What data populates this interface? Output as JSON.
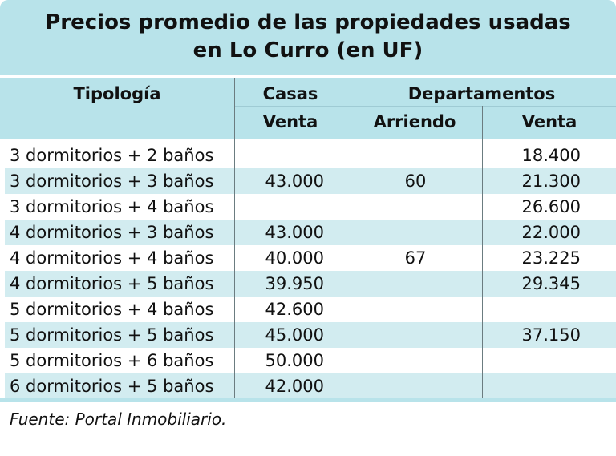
{
  "title": {
    "line1": "Precios promedio de las propiedades usadas",
    "line2": "en Lo Curro (en UF)"
  },
  "header": {
    "tipologia": "Tipología",
    "casas": "Casas",
    "departamentos": "Departamentos",
    "venta_casas": "Venta",
    "arriendo": "Arriendo",
    "venta_deptos": "Venta"
  },
  "rows": [
    {
      "tipologia": "3 dormitorios + 2 baños",
      "casas_venta": "",
      "deptos_arriendo": "",
      "deptos_venta": "18.400"
    },
    {
      "tipologia": "3 dormitorios + 3 baños",
      "casas_venta": "43.000",
      "deptos_arriendo": "60",
      "deptos_venta": "21.300"
    },
    {
      "tipologia": "3 dormitorios + 4 baños",
      "casas_venta": "",
      "deptos_arriendo": "",
      "deptos_venta": "26.600"
    },
    {
      "tipologia": "4 dormitorios + 3 baños",
      "casas_venta": "43.000",
      "deptos_arriendo": "",
      "deptos_venta": "22.000"
    },
    {
      "tipologia": "4 dormitorios + 4 baños",
      "casas_venta": "40.000",
      "deptos_arriendo": "67",
      "deptos_venta": "23.225"
    },
    {
      "tipologia": "4 dormitorios + 5 baños",
      "casas_venta": "39.950",
      "deptos_arriendo": "",
      "deptos_venta": "29.345"
    },
    {
      "tipologia": "5 dormitorios + 4 baños",
      "casas_venta": "42.600",
      "deptos_arriendo": "",
      "deptos_venta": ""
    },
    {
      "tipologia": "5 dormitorios + 5 baños",
      "casas_venta": "45.000",
      "deptos_arriendo": "",
      "deptos_venta": "37.150"
    },
    {
      "tipologia": "5 dormitorios + 6 baños",
      "casas_venta": "50.000",
      "deptos_arriendo": "",
      "deptos_venta": ""
    },
    {
      "tipologia": "6 dormitorios + 5 baños",
      "casas_venta": "42.000",
      "deptos_arriendo": "",
      "deptos_venta": ""
    }
  ],
  "source": "Fuente: Portal Inmobiliario.",
  "colors": {
    "header_band": "#b8e3ea",
    "row_shade": "#d2ecf0",
    "text": "#111111"
  }
}
